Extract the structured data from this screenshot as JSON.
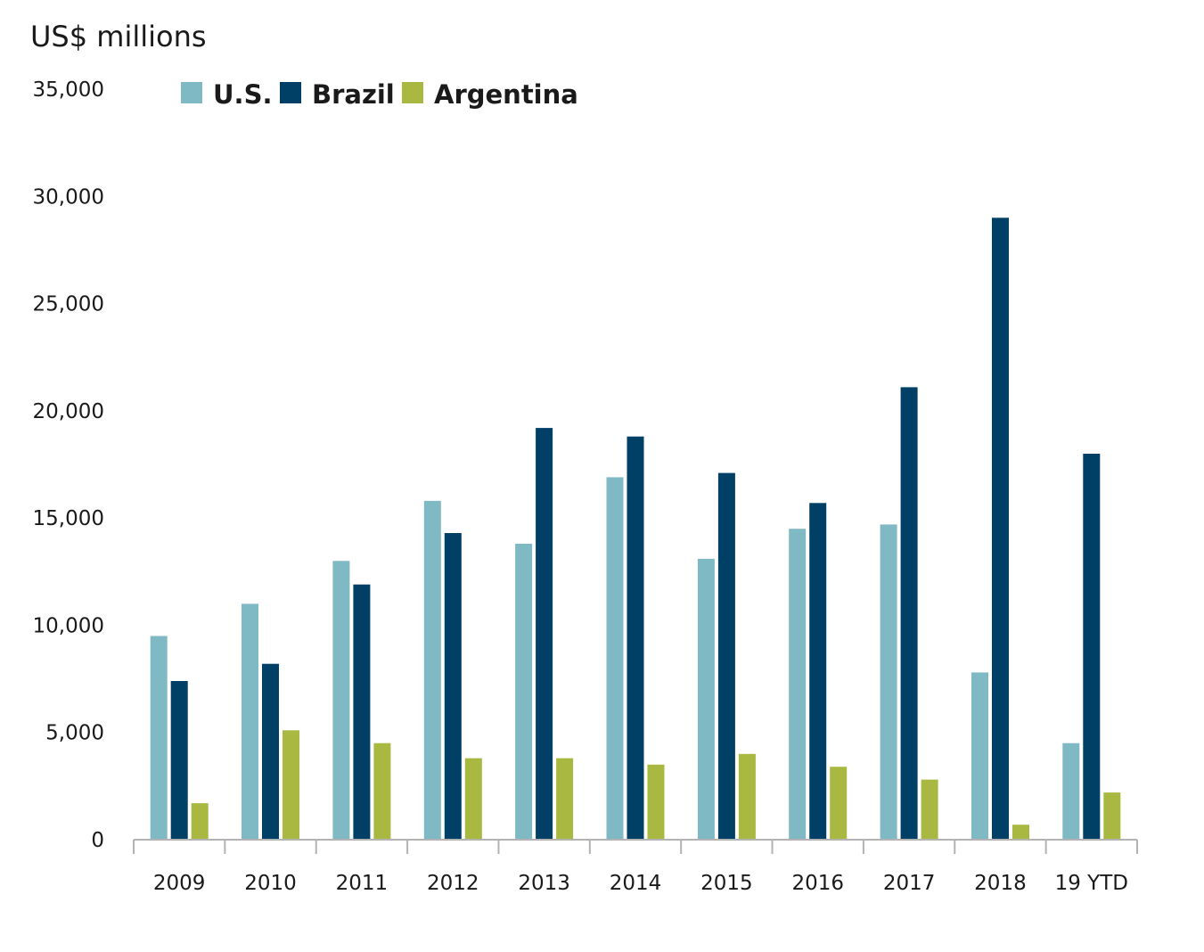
{
  "chart_data": {
    "type": "bar",
    "title": "",
    "xlabel": "",
    "ylabel": "US$ millions",
    "ylim": [
      0,
      35000
    ],
    "yticks": [
      0,
      5000,
      10000,
      15000,
      20000,
      25000,
      30000,
      35000
    ],
    "ytick_labels": [
      "0",
      "5,000",
      "10,000",
      "15,000",
      "20,000",
      "25,000",
      "30,000",
      "35,000"
    ],
    "grid": false,
    "legend_position": "top-left",
    "categories": [
      "2009",
      "2010",
      "2011",
      "2012",
      "2013",
      "2014",
      "2015",
      "2016",
      "2017",
      "2018",
      "19 YTD"
    ],
    "series": [
      {
        "name": "U.S.",
        "color": "#7fb9c4",
        "values": [
          9500,
          11000,
          13000,
          15800,
          13800,
          16900,
          13100,
          14500,
          14700,
          7800,
          4500
        ]
      },
      {
        "name": "Brazil",
        "color": "#003f66",
        "values": [
          7400,
          8200,
          11900,
          14300,
          19200,
          18800,
          17100,
          15700,
          21100,
          29000,
          18000
        ]
      },
      {
        "name": "Argentina",
        "color": "#a8b840",
        "values": [
          1700,
          5100,
          4500,
          3800,
          3800,
          3500,
          4000,
          3400,
          2800,
          700,
          2200
        ]
      }
    ],
    "axis_color": "#b3b3b3"
  }
}
